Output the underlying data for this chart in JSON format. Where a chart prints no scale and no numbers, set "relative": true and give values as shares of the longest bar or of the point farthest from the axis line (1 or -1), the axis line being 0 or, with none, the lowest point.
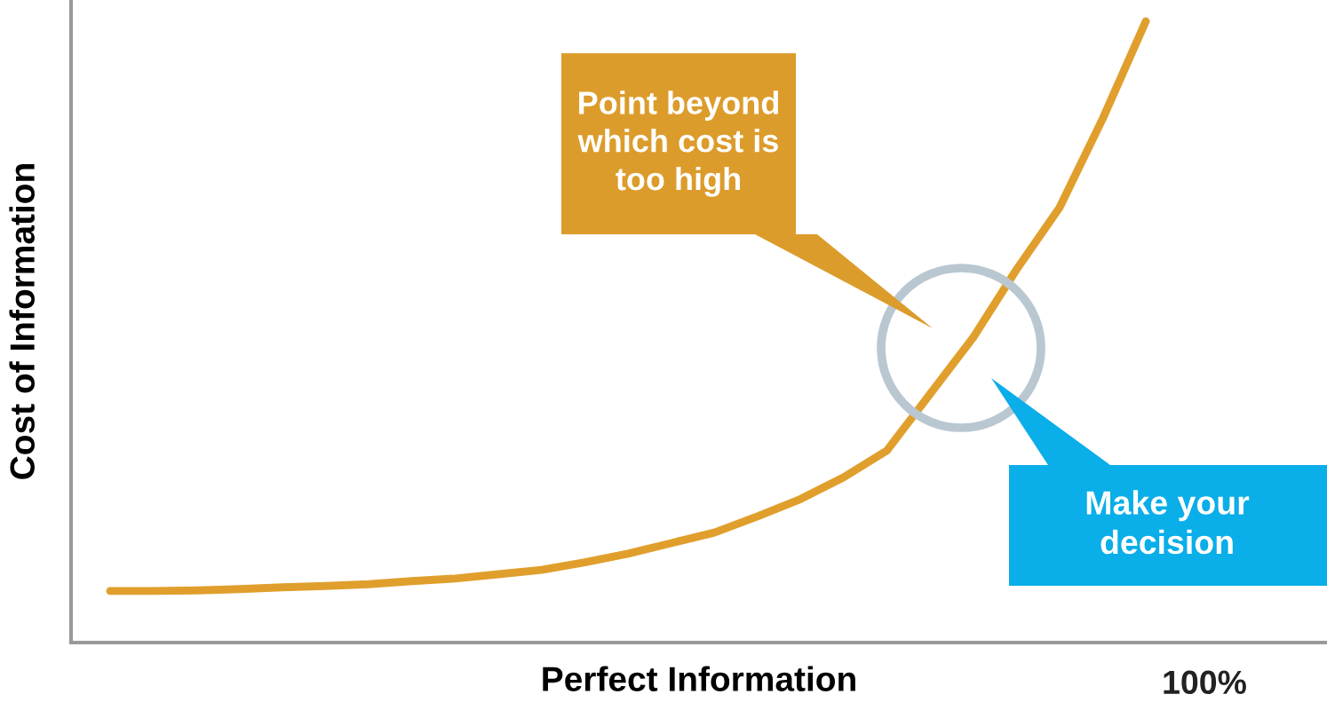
{
  "chart_data": {
    "type": "line",
    "relative": true,
    "xlabel": "Perfect Information",
    "ylabel": "Cost of Information",
    "categories": [
      null,
      null,
      null,
      null,
      null,
      null,
      null,
      null,
      null,
      null,
      null,
      null,
      null,
      null,
      null,
      null,
      null,
      null,
      null,
      null,
      null,
      null,
      null,
      null,
      null
    ],
    "series": [
      {
        "color": "#e09f2c",
        "values": [
          0.083,
          0.083,
          0.084,
          0.086,
          0.089,
          0.091,
          0.094,
          0.099,
          0.103,
          0.11,
          0.117,
          0.129,
          0.143,
          0.16,
          0.177,
          0.203,
          0.231,
          0.266,
          0.309,
          0.4,
          0.491,
          0.6,
          0.7,
          0.843,
          1
        ]
      }
    ],
    "annotations": [
      "Point beyond\nwhich cost is\ntoo high",
      "Make your\ndecision",
      "100%"
    ],
    "grid": false,
    "legend": false,
    "marker": "none",
    "line_style": "solid"
  }
}
